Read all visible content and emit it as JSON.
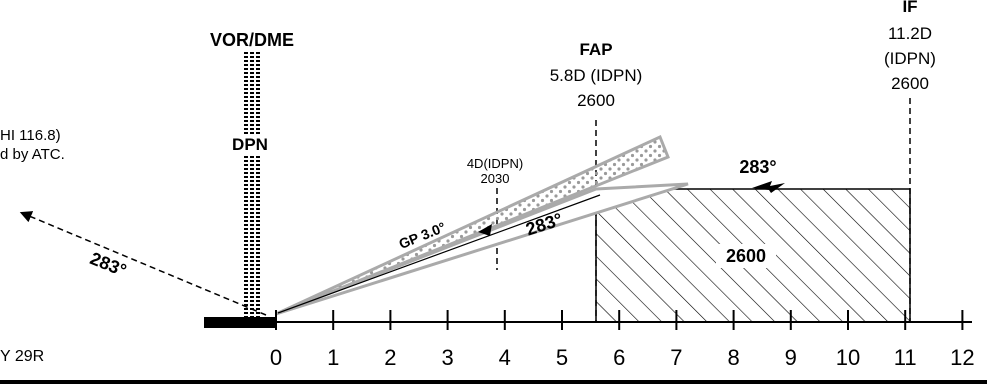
{
  "title_cut": "IF",
  "vor": {
    "label": "VOR/DME",
    "ident": "DPN"
  },
  "fap": {
    "label": "FAP",
    "dist": "5.8D (IDPN)",
    "alt": "2600"
  },
  "if_fix": {
    "dist": "11.2D",
    "ref": "(IDPN)",
    "alt": "2600"
  },
  "missed_note": {
    "line1": "HI 116.8)",
    "line2": "d by ATC."
  },
  "stepdown": {
    "dist": "4D(IDPN)",
    "alt": "2030"
  },
  "glidepath": {
    "label": "GP 3.0°"
  },
  "courses": {
    "final": "283°",
    "intermediate": "283°",
    "missed": "283°"
  },
  "hold_alt": "2600",
  "runway": "Y 29R",
  "scale": [
    "0",
    "1",
    "2",
    "3",
    "4",
    "5",
    "6",
    "7",
    "8",
    "9",
    "10",
    "11",
    "12"
  ]
}
